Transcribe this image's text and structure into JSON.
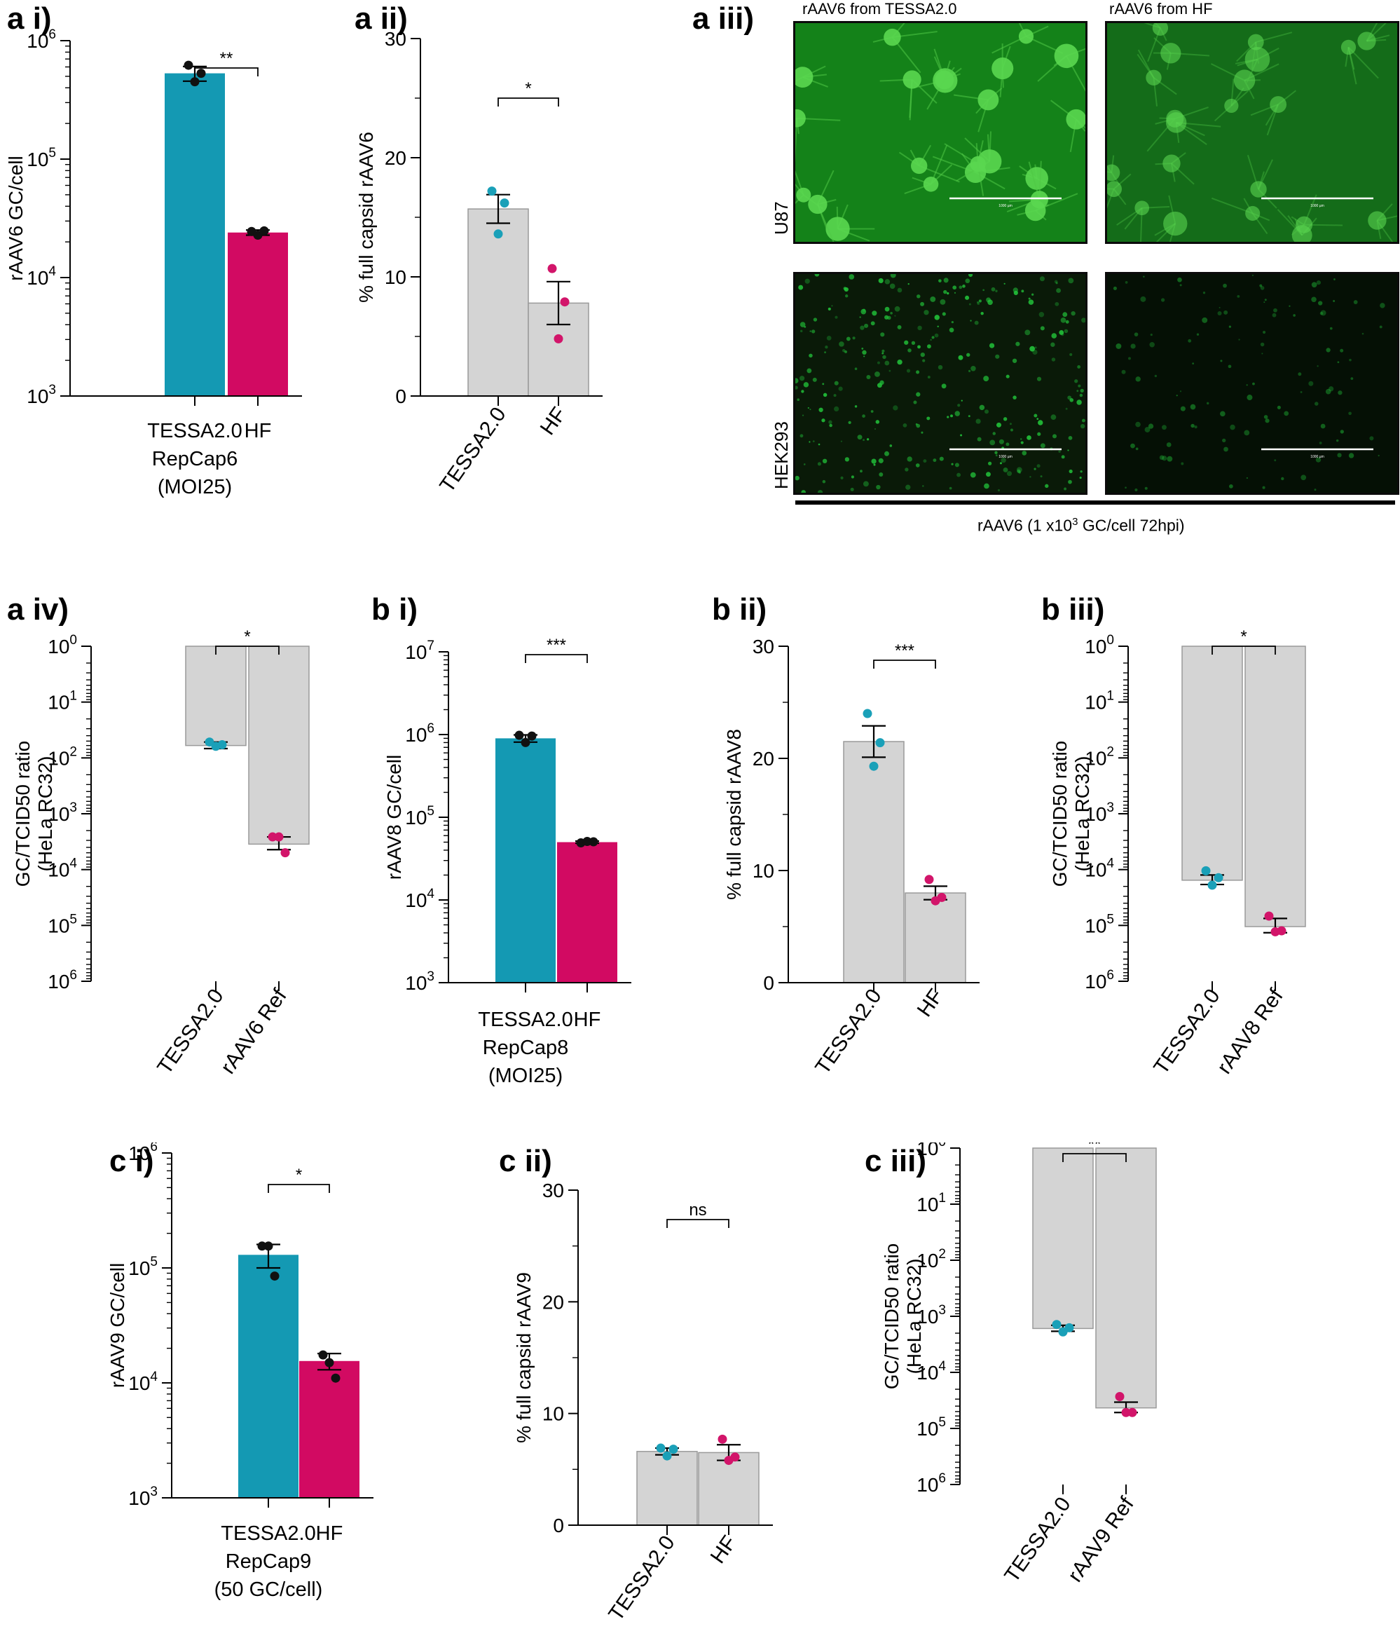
{
  "colors": {
    "teal": "#1499b3",
    "magenta": "#d20a62",
    "gray_bar": "#d4d4d4",
    "gray_edge": "#9a9a9a",
    "dot_teal": "#1aa0b8",
    "dot_magenta": "#d2156a",
    "dot_black": "#111111",
    "micro_green": "#22c43a"
  },
  "panels": {
    "a_i": "a i)",
    "a_ii": "a ii)",
    "a_iii": "a iii)",
    "a_iv": "a iv)",
    "b_i": "b i)",
    "b_ii": "b ii)",
    "b_iii": "b iii)",
    "c_i": "c i)",
    "c_ii": "c ii)",
    "c_iii": "c iii)"
  },
  "microscopy": {
    "col_labels": [
      "rAAV6 from TESSA2.0",
      "rAAV6 from HF"
    ],
    "row_labels": [
      "U87",
      "HEK293"
    ],
    "caption": "rAAV6 (1 x10",
    "caption_sup": "3",
    "caption_end": " GC/cell 72hpi)",
    "scale_text": "1000 µm",
    "brightness": [
      [
        1.0,
        0.45
      ],
      [
        1.0,
        0.3
      ]
    ]
  },
  "chart_data": [
    {
      "id": "a_i",
      "type": "bar",
      "scale": "log",
      "ylim_exp": [
        3,
        6
      ],
      "inverted": false,
      "ylabel": "rAAV6  GC/cell",
      "categories": [
        [
          "TESSA2.0",
          "RepCap6",
          "(MOI25)"
        ],
        [
          "HF"
        ]
      ],
      "rotate_x": false,
      "values": [
        530000,
        24000
      ],
      "sem": [
        75000,
        1200
      ],
      "points": [
        [
          620000,
          450000,
          530000
        ],
        [
          24500,
          22800,
          24800
        ]
      ],
      "bar_colors": [
        "teal",
        "magenta"
      ],
      "dot_colors": [
        "dot_black",
        "dot_black"
      ],
      "significance": "**"
    },
    {
      "id": "a_ii",
      "type": "bar",
      "scale": "linear",
      "ylim": [
        0,
        30
      ],
      "ticks": [
        0,
        10,
        20,
        30
      ],
      "ylabel": "%  full capsid rAAV6",
      "categories": [
        [
          "TESSA2.0"
        ],
        [
          "HF"
        ]
      ],
      "rotate_x": true,
      "values": [
        15.7,
        7.8
      ],
      "sem": [
        1.2,
        1.8
      ],
      "points": [
        [
          17.2,
          13.6,
          16.2
        ],
        [
          10.7,
          4.8,
          7.9
        ]
      ],
      "bar_colors": [
        "gray_bar",
        "gray_bar"
      ],
      "dot_colors": [
        "dot_teal",
        "dot_magenta"
      ],
      "significance": "*"
    },
    {
      "id": "a_iv",
      "type": "bar",
      "scale": "log",
      "ylim_exp": [
        0,
        6
      ],
      "inverted": true,
      "ylabel": [
        "GC/TCID50 ratio",
        "(HeLa RC32)"
      ],
      "categories": [
        [
          "TESSA2.0"
        ],
        [
          "rAAV6 Ref"
        ]
      ],
      "rotate_x": true,
      "values": [
        60,
        3500
      ],
      "sem": [
        8,
        900
      ],
      "points": [
        [
          52,
          62,
          58
        ],
        [
          2600,
          2600,
          5000
        ]
      ],
      "bar_colors": [
        "gray_bar",
        "gray_bar"
      ],
      "dot_colors": [
        "dot_teal",
        "dot_magenta"
      ],
      "significance": "*"
    },
    {
      "id": "b_i",
      "type": "bar",
      "scale": "log",
      "ylim_exp": [
        3,
        7
      ],
      "inverted": false,
      "ylabel": "rAAV8 GC/cell",
      "categories": [
        [
          "TESSA2.0",
          "RepCap8",
          "(MOI25)"
        ],
        [
          "HF"
        ]
      ],
      "rotate_x": false,
      "values": [
        900000,
        50000
      ],
      "sem": [
        90000,
        1500
      ],
      "points": [
        [
          980000,
          800000,
          960000
        ],
        [
          49000,
          51000,
          50500
        ]
      ],
      "bar_colors": [
        "teal",
        "magenta"
      ],
      "dot_colors": [
        "dot_black",
        "dot_black"
      ],
      "significance": "***"
    },
    {
      "id": "b_ii",
      "type": "bar",
      "scale": "linear",
      "ylim": [
        0,
        30
      ],
      "ticks": [
        0,
        10,
        20,
        30
      ],
      "ylabel": "%  full capsid  rAAV8",
      "categories": [
        [
          "TESSA2.0"
        ],
        [
          "HF"
        ]
      ],
      "rotate_x": true,
      "values": [
        21.5,
        8.0
      ],
      "sem": [
        1.4,
        0.6
      ],
      "points": [
        [
          24.0,
          19.3,
          21.4
        ],
        [
          9.2,
          7.3,
          7.6
        ]
      ],
      "bar_colors": [
        "gray_bar",
        "gray_bar"
      ],
      "dot_colors": [
        "dot_teal",
        "dot_magenta"
      ],
      "significance": "***"
    },
    {
      "id": "b_iii",
      "type": "bar",
      "scale": "log",
      "ylim_exp": [
        0,
        6
      ],
      "inverted": true,
      "ylabel": [
        "GC/TCID50 ratio",
        "(HeLa RC32)"
      ],
      "categories": [
        [
          "TESSA2.0"
        ],
        [
          "rAAV8 Ref"
        ]
      ],
      "rotate_x": true,
      "values": [
        15500,
        105000
      ],
      "sem": [
        3000,
        30000
      ],
      "points": [
        [
          10500,
          19000,
          14000
        ],
        [
          68000,
          130000,
          125000
        ]
      ],
      "bar_colors": [
        "gray_bar",
        "gray_bar"
      ],
      "dot_colors": [
        "dot_teal",
        "dot_magenta"
      ],
      "significance": "*"
    },
    {
      "id": "c_i",
      "type": "bar",
      "scale": "log",
      "ylim_exp": [
        3,
        6
      ],
      "inverted": false,
      "ylabel": "rAAV9 GC/cell",
      "categories": [
        [
          "TESSA2.0",
          "RepCap9",
          "(50 GC/cell)"
        ],
        [
          "HF"
        ]
      ],
      "rotate_x": false,
      "values": [
        130000,
        15500
      ],
      "sem": [
        30000,
        2500
      ],
      "points": [
        [
          155000,
          155000,
          85000
        ],
        [
          17500,
          15000,
          11000
        ]
      ],
      "bar_colors": [
        "teal",
        "magenta"
      ],
      "dot_colors": [
        "dot_black",
        "dot_black"
      ],
      "significance": "*"
    },
    {
      "id": "c_ii",
      "type": "bar",
      "scale": "linear",
      "ylim": [
        0,
        30
      ],
      "ticks": [
        0,
        10,
        20,
        30
      ],
      "ylabel": "% full capsid  rAAV9",
      "categories": [
        [
          "TESSA2.0"
        ],
        [
          "HF"
        ]
      ],
      "rotate_x": true,
      "values": [
        6.6,
        6.5
      ],
      "sem": [
        0.3,
        0.7
      ],
      "points": [
        [
          6.9,
          6.2,
          6.8
        ],
        [
          7.7,
          5.8,
          6.1
        ]
      ],
      "bar_colors": [
        "gray_bar",
        "gray_bar"
      ],
      "dot_colors": [
        "dot_teal",
        "dot_magenta"
      ],
      "significance": "ns"
    },
    {
      "id": "c_iii",
      "type": "bar",
      "scale": "log",
      "ylim_exp": [
        0,
        6
      ],
      "inverted": true,
      "ylabel": [
        "GC/TCID50 ratio",
        "(HeLa RC32)"
      ],
      "categories": [
        [
          "TESSA2.0"
        ],
        [
          "rAAV9 Ref"
        ]
      ],
      "rotate_x": true,
      "values": [
        1650,
        43000
      ],
      "sem": [
        200,
        9000
      ],
      "points": [
        [
          1400,
          1900,
          1600
        ],
        [
          27000,
          52000,
          52000
        ]
      ],
      "bar_colors": [
        "gray_bar",
        "gray_bar"
      ],
      "dot_colors": [
        "dot_teal",
        "dot_magenta"
      ],
      "significance": "**"
    }
  ]
}
